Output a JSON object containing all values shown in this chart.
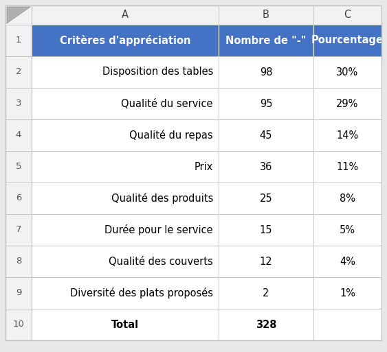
{
  "col_labels": [
    "A",
    "B",
    "C"
  ],
  "header": [
    "Critères d'appréciation",
    "Nombre de \"-\"",
    "Pourcentage"
  ],
  "rows": [
    [
      "Disposition des tables",
      "98",
      "30%"
    ],
    [
      "Qualité du service",
      "95",
      "29%"
    ],
    [
      "Qualité du repas",
      "45",
      "14%"
    ],
    [
      "Prix",
      "36",
      "11%"
    ],
    [
      "Qualité des produits",
      "25",
      "8%"
    ],
    [
      "Durée pour le service",
      "15",
      "5%"
    ],
    [
      "Qualité des couverts",
      "12",
      "4%"
    ],
    [
      "Diversité des plats proposés",
      "2",
      "1%"
    ]
  ],
  "footer": [
    "Total",
    "328",
    ""
  ],
  "header_bg": "#4472C4",
  "header_fg": "#FFFFFF",
  "row_bg": "#FFFFFF",
  "row_fg": "#000000",
  "footer_fg": "#000000",
  "grid_color": "#C0C0C0",
  "row_number_bg": "#F2F2F2",
  "col_header_bg": "#F2F2F2",
  "outer_bg": "#E8E8E8",
  "font_size": 10.5,
  "header_font_size": 10.5,
  "row_num_font_size": 9.5
}
